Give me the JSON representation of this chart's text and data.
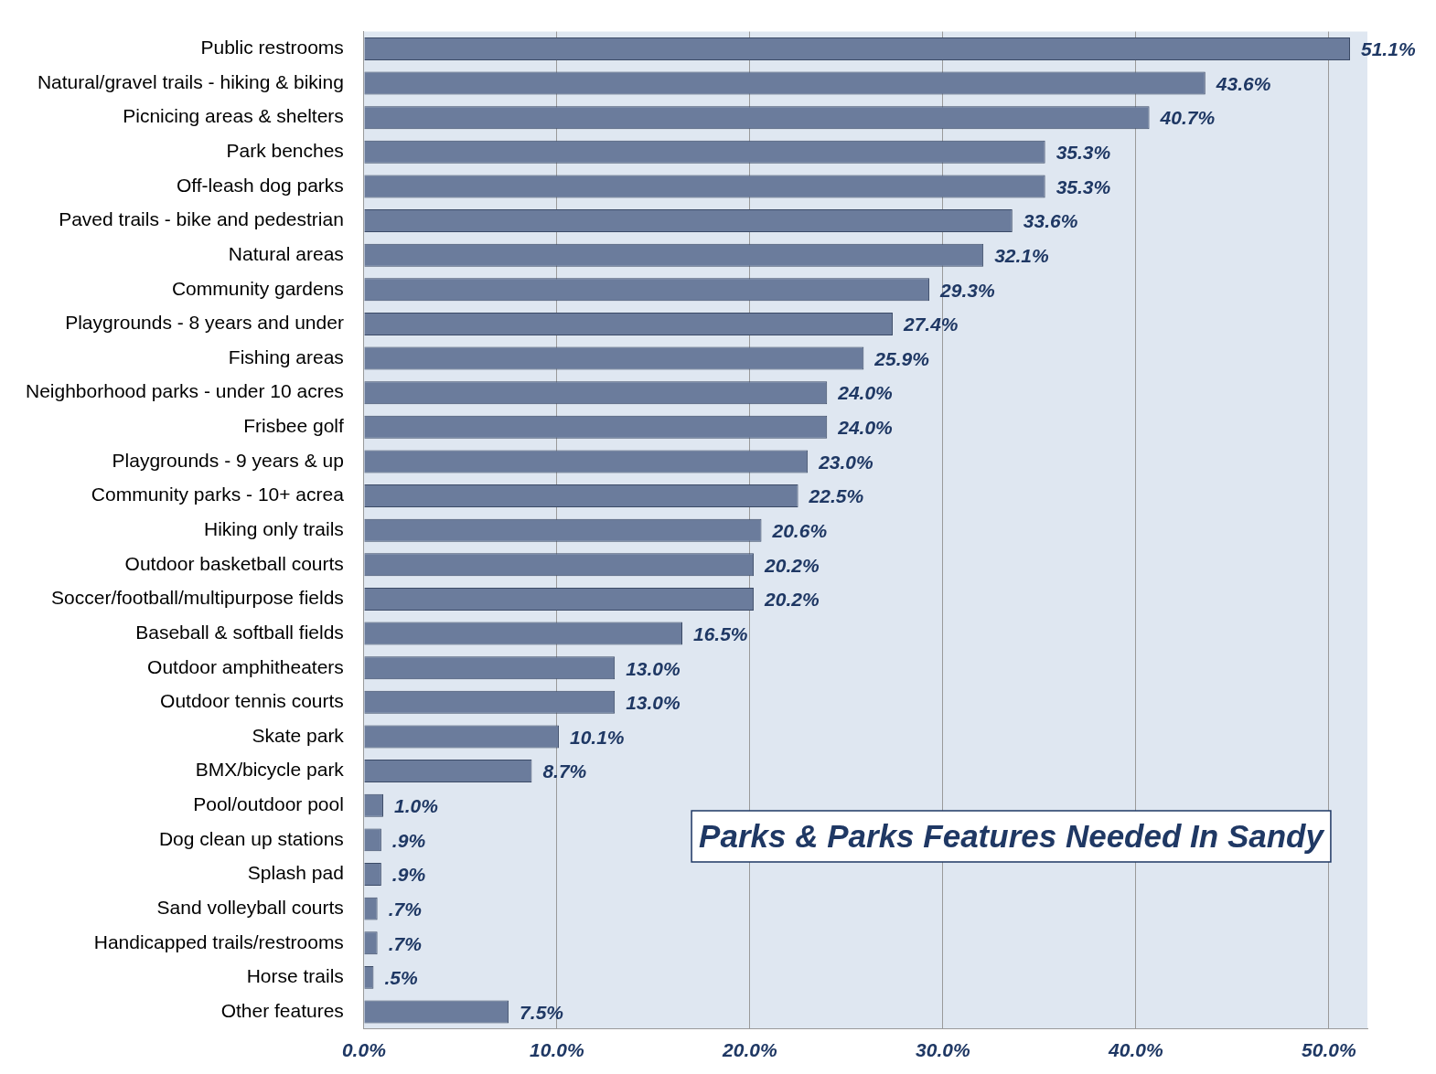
{
  "chart_data": {
    "type": "bar",
    "orientation": "horizontal",
    "title": "Parks & Parks Features Needed In Sandy",
    "categories": [
      "Public restrooms",
      "Natural/gravel trails - hiking & biking",
      "Picnicing areas & shelters",
      "Park benches",
      "Off-leash dog parks",
      "Paved trails - bike and pedestrian",
      "Natural areas",
      "Community gardens",
      "Playgrounds - 8 years and under",
      "Fishing areas",
      "Neighborhood parks - under 10 acres",
      "Frisbee golf",
      "Playgrounds - 9 years & up",
      "Community parks - 10+ acrea",
      "Hiking only trails",
      "Outdoor basketball courts",
      "Soccer/football/multipurpose fields",
      "Baseball & softball fields",
      "Outdoor amphitheaters",
      "Outdoor tennis courts",
      "Skate park",
      "BMX/bicycle park",
      "Pool/outdoor pool",
      "Dog clean up stations",
      "Splash pad",
      "Sand volleyball courts",
      "Handicapped trails/restrooms",
      "Horse trails",
      "Other features"
    ],
    "values": [
      51.1,
      43.6,
      40.7,
      35.3,
      35.3,
      33.6,
      32.1,
      29.3,
      27.4,
      25.9,
      24.0,
      24.0,
      23.0,
      22.5,
      20.6,
      20.2,
      20.2,
      16.5,
      13.0,
      13.0,
      10.1,
      8.7,
      1.0,
      0.9,
      0.9,
      0.7,
      0.7,
      0.5,
      7.5
    ],
    "value_labels": [
      "51.1%",
      "43.6%",
      "40.7%",
      "35.3%",
      "35.3%",
      "33.6%",
      "32.1%",
      "29.3%",
      "27.4%",
      "25.9%",
      "24.0%",
      "24.0%",
      "23.0%",
      "22.5%",
      "20.6%",
      "20.2%",
      "20.2%",
      "16.5%",
      "13.0%",
      "13.0%",
      "10.1%",
      "8.7%",
      "1.0%",
      ".9%",
      ".9%",
      ".7%",
      ".7%",
      ".5%",
      "7.5%"
    ],
    "color": "#6b7c9c",
    "xlim": [
      0,
      52
    ],
    "xticks": [
      {
        "value": 0,
        "label": "0.0%"
      },
      {
        "value": 10,
        "label": "10.0%"
      },
      {
        "value": 20,
        "label": "20.0%"
      },
      {
        "value": 30,
        "label": "30.0%"
      },
      {
        "value": 40,
        "label": "40.0%"
      },
      {
        "value": 50,
        "label": "50.0%"
      }
    ],
    "grid": "x",
    "legend": false
  }
}
